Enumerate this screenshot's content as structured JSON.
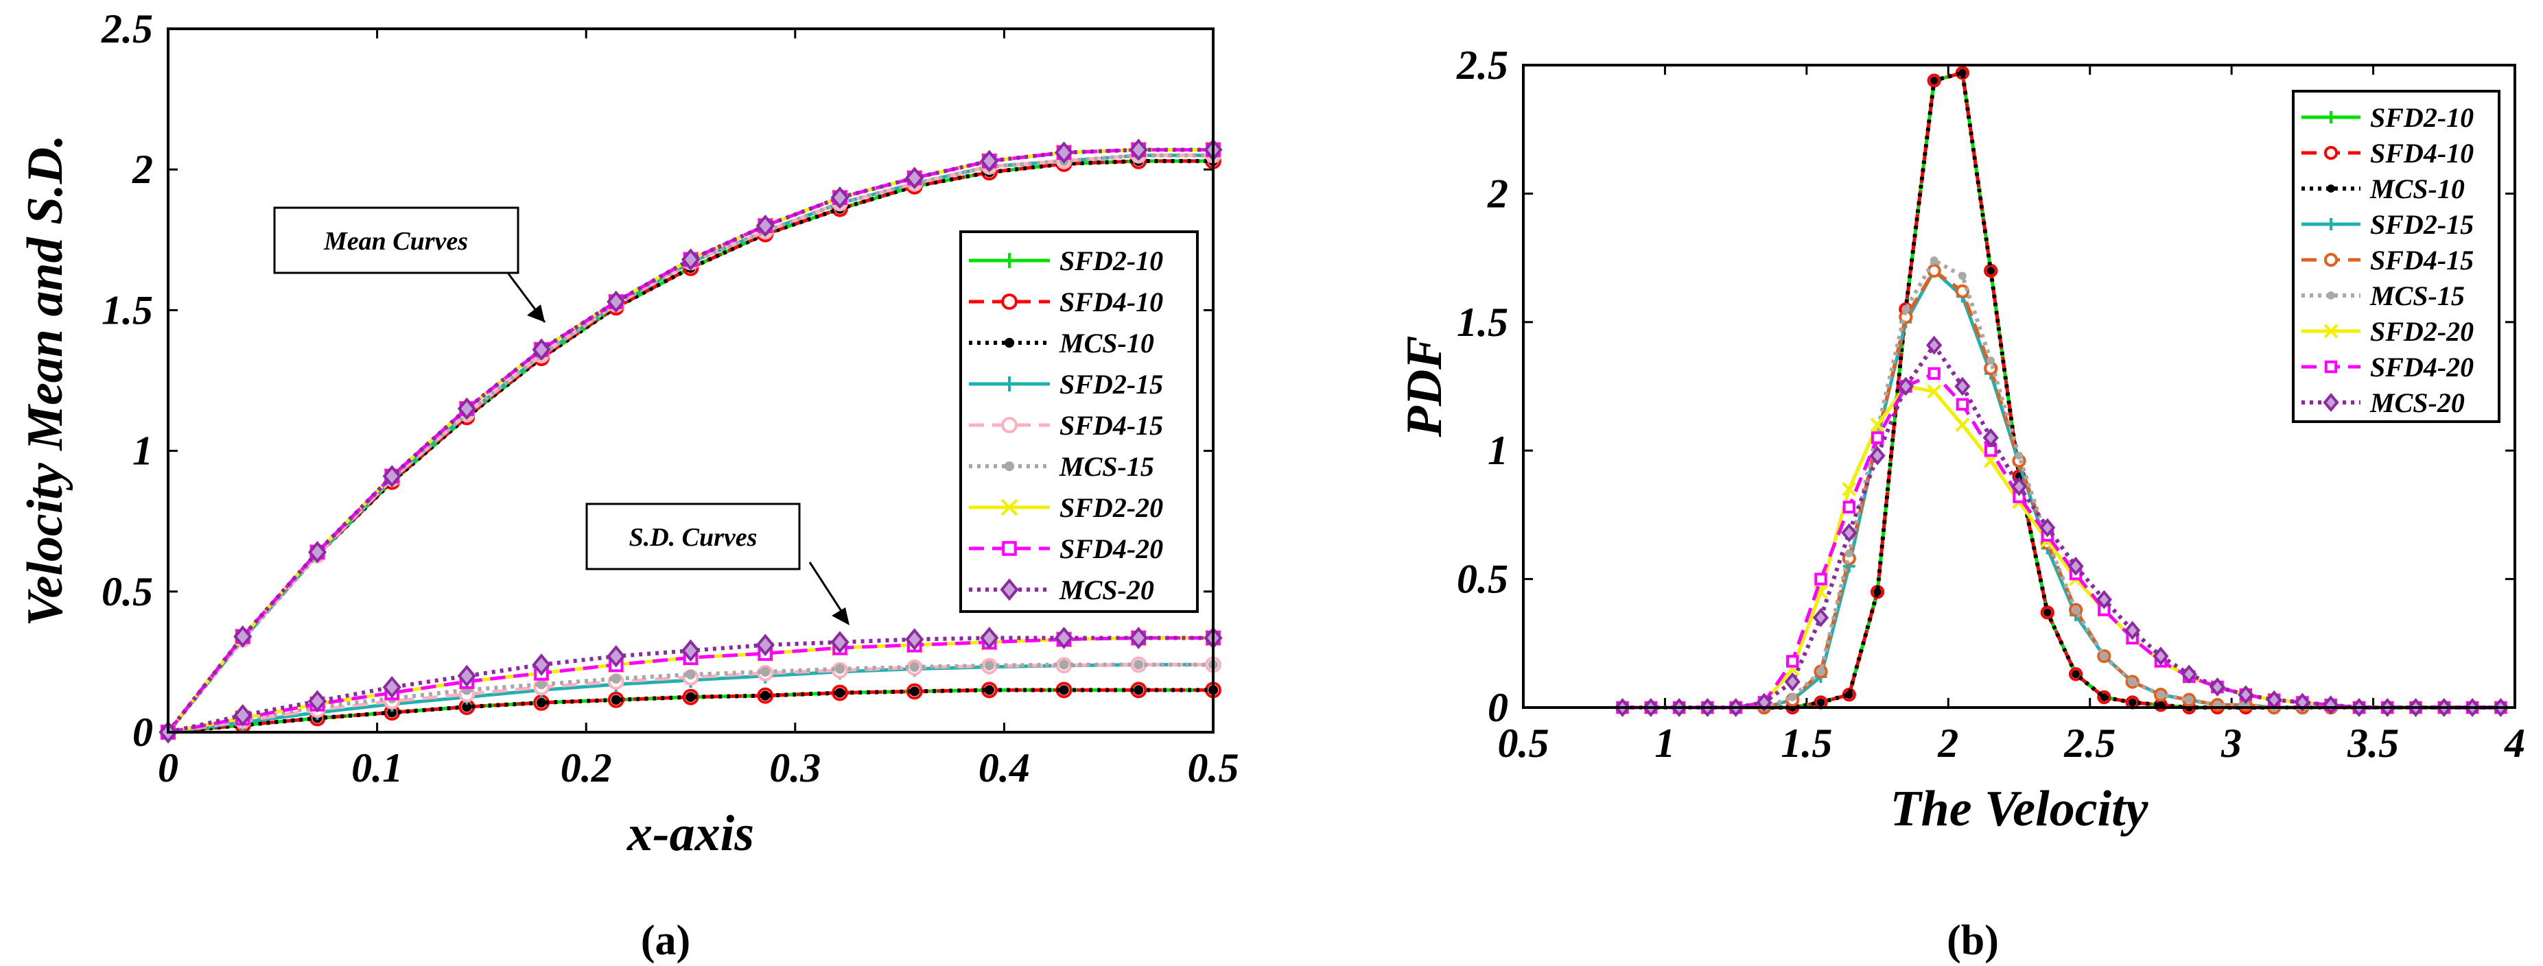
{
  "colors": {
    "SFD2-10": "#00e000",
    "SFD4-10": "#ff0000",
    "MCS-10": "#000000",
    "SFD2-15": "#20b0b0",
    "SFD4-15a": "#ffb0c0",
    "SFD4-15b": "#e06020",
    "MCS-15": "#a8a8a8",
    "SFD2-20": "#f0f000",
    "SFD4-20": "#ff00ff",
    "MCS-20": "#8a2ba0"
  },
  "chart_data": [
    {
      "type": "line",
      "caption": "(a)",
      "xlabel": "x-axis",
      "ylabel": "Velocity Mean and S.D.",
      "xlim": [
        0,
        0.5
      ],
      "ylim": [
        0,
        2.5
      ],
      "xticks": [
        "0",
        "0.1",
        "0.2",
        "0.3",
        "0.4",
        "0.5"
      ],
      "yticks": [
        "0",
        "0.5",
        "1",
        "1.5",
        "2",
        "2.5"
      ],
      "legend_position": "center-right",
      "annotations": [
        "Mean Curves",
        "S.D. Curves"
      ],
      "x": [
        0,
        0.0357,
        0.0714,
        0.1071,
        0.1429,
        0.1786,
        0.2143,
        0.25,
        0.2857,
        0.3214,
        0.3571,
        0.3929,
        0.4286,
        0.4643,
        0.5
      ],
      "series": [
        {
          "name": "SFD2-10",
          "group": "mean",
          "values": [
            0,
            0.33,
            0.63,
            0.89,
            1.12,
            1.33,
            1.51,
            1.65,
            1.77,
            1.86,
            1.94,
            1.99,
            2.02,
            2.03,
            2.03
          ]
        },
        {
          "name": "SFD4-10",
          "group": "mean",
          "values": [
            0,
            0.33,
            0.63,
            0.89,
            1.12,
            1.33,
            1.51,
            1.65,
            1.77,
            1.86,
            1.94,
            1.99,
            2.02,
            2.03,
            2.03
          ]
        },
        {
          "name": "MCS-10",
          "group": "mean",
          "values": [
            0,
            0.33,
            0.63,
            0.89,
            1.12,
            1.33,
            1.51,
            1.65,
            1.77,
            1.86,
            1.94,
            1.99,
            2.02,
            2.03,
            2.03
          ]
        },
        {
          "name": "SFD2-15",
          "group": "mean",
          "values": [
            0,
            0.33,
            0.63,
            0.9,
            1.13,
            1.34,
            1.52,
            1.67,
            1.78,
            1.88,
            1.95,
            2.01,
            2.03,
            2.05,
            2.05
          ]
        },
        {
          "name": "SFD4-15",
          "group": "mean",
          "values": [
            0,
            0.33,
            0.63,
            0.9,
            1.13,
            1.34,
            1.52,
            1.67,
            1.78,
            1.88,
            1.95,
            2.01,
            2.03,
            2.05,
            2.05
          ]
        },
        {
          "name": "MCS-15",
          "group": "mean",
          "values": [
            0,
            0.33,
            0.63,
            0.9,
            1.13,
            1.34,
            1.52,
            1.67,
            1.78,
            1.88,
            1.95,
            2.01,
            2.03,
            2.05,
            2.05
          ]
        },
        {
          "name": "SFD2-20",
          "group": "mean",
          "values": [
            0,
            0.34,
            0.64,
            0.91,
            1.15,
            1.36,
            1.53,
            1.68,
            1.8,
            1.9,
            1.97,
            2.03,
            2.06,
            2.07,
            2.07
          ]
        },
        {
          "name": "SFD4-20",
          "group": "mean",
          "values": [
            0,
            0.34,
            0.64,
            0.91,
            1.15,
            1.36,
            1.53,
            1.68,
            1.8,
            1.9,
            1.97,
            2.03,
            2.06,
            2.07,
            2.07
          ]
        },
        {
          "name": "MCS-20",
          "group": "mean",
          "values": [
            0,
            0.34,
            0.64,
            0.91,
            1.15,
            1.36,
            1.53,
            1.68,
            1.8,
            1.9,
            1.97,
            2.03,
            2.06,
            2.07,
            2.07
          ]
        },
        {
          "name": "SFD2-10",
          "group": "sd",
          "values": [
            0,
            0.025,
            0.05,
            0.07,
            0.09,
            0.105,
            0.115,
            0.125,
            0.13,
            0.14,
            0.145,
            0.15,
            0.15,
            0.15,
            0.15
          ]
        },
        {
          "name": "SFD4-10",
          "group": "sd",
          "values": [
            0,
            0.025,
            0.05,
            0.07,
            0.09,
            0.105,
            0.115,
            0.125,
            0.13,
            0.14,
            0.145,
            0.15,
            0.15,
            0.15,
            0.15
          ]
        },
        {
          "name": "MCS-10",
          "group": "sd",
          "values": [
            0,
            0.025,
            0.05,
            0.07,
            0.09,
            0.105,
            0.115,
            0.125,
            0.13,
            0.14,
            0.145,
            0.15,
            0.15,
            0.15,
            0.15
          ]
        },
        {
          "name": "SFD2-15",
          "group": "sd",
          "values": [
            0,
            0.035,
            0.07,
            0.1,
            0.125,
            0.15,
            0.17,
            0.185,
            0.2,
            0.215,
            0.225,
            0.232,
            0.237,
            0.24,
            0.24
          ]
        },
        {
          "name": "SFD4-15",
          "group": "sd",
          "values": [
            0,
            0.04,
            0.08,
            0.11,
            0.135,
            0.16,
            0.18,
            0.195,
            0.21,
            0.22,
            0.23,
            0.235,
            0.238,
            0.24,
            0.24
          ]
        },
        {
          "name": "MCS-15",
          "group": "sd",
          "values": [
            0,
            0.045,
            0.09,
            0.12,
            0.15,
            0.17,
            0.19,
            0.205,
            0.215,
            0.225,
            0.232,
            0.237,
            0.24,
            0.24,
            0.24
          ]
        },
        {
          "name": "SFD2-20",
          "group": "sd",
          "values": [
            0,
            0.05,
            0.1,
            0.14,
            0.18,
            0.21,
            0.24,
            0.265,
            0.28,
            0.3,
            0.31,
            0.32,
            0.33,
            0.335,
            0.335
          ]
        },
        {
          "name": "SFD4-20",
          "group": "sd",
          "values": [
            0,
            0.05,
            0.1,
            0.14,
            0.18,
            0.21,
            0.24,
            0.265,
            0.28,
            0.3,
            0.31,
            0.32,
            0.33,
            0.335,
            0.335
          ]
        },
        {
          "name": "MCS-20",
          "group": "sd",
          "values": [
            0,
            0.06,
            0.11,
            0.16,
            0.2,
            0.24,
            0.27,
            0.29,
            0.31,
            0.32,
            0.33,
            0.335,
            0.335,
            0.335,
            0.335
          ]
        }
      ]
    },
    {
      "type": "line",
      "caption": "(b)",
      "xlabel": "The Velocity",
      "ylabel": "PDF",
      "xlim": [
        0.5,
        4
      ],
      "ylim": [
        0,
        2.5
      ],
      "xticks": [
        "0.5",
        "1",
        "1.5",
        "2",
        "2.5",
        "3",
        "3.5",
        "4"
      ],
      "yticks": [
        "0",
        "0.5",
        "1",
        "1.5",
        "2",
        "2.5"
      ],
      "legend_position": "top-right",
      "x": [
        0.85,
        0.95,
        1.05,
        1.15,
        1.25,
        1.35,
        1.45,
        1.55,
        1.65,
        1.75,
        1.85,
        1.95,
        2.05,
        2.15,
        2.25,
        2.35,
        2.45,
        2.55,
        2.65,
        2.75,
        2.85,
        2.95,
        3.05,
        3.15,
        3.25,
        3.35,
        3.45,
        3.55,
        3.65,
        3.75,
        3.85,
        3.95
      ],
      "series": [
        {
          "name": "SFD2-10",
          "values": [
            0,
            0,
            0,
            0,
            0,
            0,
            0,
            0.02,
            0.05,
            0.45,
            1.55,
            2.44,
            2.47,
            1.7,
            0.9,
            0.37,
            0.13,
            0.04,
            0.02,
            0.01,
            0,
            0,
            0,
            0,
            0,
            0,
            0,
            0,
            0,
            0,
            0,
            0
          ]
        },
        {
          "name": "SFD4-10",
          "values": [
            0,
            0,
            0,
            0,
            0,
            0,
            0,
            0.02,
            0.05,
            0.45,
            1.55,
            2.44,
            2.47,
            1.7,
            0.9,
            0.37,
            0.13,
            0.04,
            0.02,
            0.01,
            0,
            0,
            0,
            0,
            0,
            0,
            0,
            0,
            0,
            0,
            0,
            0
          ]
        },
        {
          "name": "MCS-10",
          "values": [
            0,
            0,
            0,
            0,
            0,
            0,
            0,
            0.02,
            0.05,
            0.45,
            1.55,
            2.44,
            2.47,
            1.7,
            0.9,
            0.37,
            0.13,
            0.04,
            0.02,
            0.01,
            0,
            0,
            0,
            0,
            0,
            0,
            0,
            0,
            0,
            0,
            0,
            0
          ]
        },
        {
          "name": "SFD2-15",
          "values": [
            0,
            0,
            0,
            0,
            0,
            0,
            0.03,
            0.12,
            0.55,
            1.05,
            1.5,
            1.7,
            1.6,
            1.3,
            0.95,
            0.62,
            0.36,
            0.2,
            0.1,
            0.05,
            0.03,
            0.01,
            0.01,
            0,
            0,
            0,
            0,
            0,
            0,
            0,
            0,
            0
          ]
        },
        {
          "name": "SFD4-15",
          "values": [
            0,
            0,
            0,
            0,
            0,
            0,
            0.03,
            0.14,
            0.58,
            1.05,
            1.52,
            1.7,
            1.62,
            1.32,
            0.96,
            0.64,
            0.38,
            0.2,
            0.1,
            0.05,
            0.03,
            0.01,
            0.01,
            0,
            0,
            0,
            0,
            0,
            0,
            0,
            0,
            0
          ]
        },
        {
          "name": "MCS-15",
          "values": [
            0,
            0,
            0,
            0,
            0,
            0,
            0.04,
            0.14,
            0.6,
            1.08,
            1.55,
            1.74,
            1.68,
            1.35,
            0.98,
            0.65,
            0.38,
            0.2,
            0.1,
            0.05,
            0.03,
            0.01,
            0.01,
            0,
            0,
            0,
            0,
            0,
            0,
            0,
            0,
            0
          ]
        },
        {
          "name": "SFD2-20",
          "values": [
            0,
            0,
            0,
            0,
            0,
            0.02,
            0.15,
            0.45,
            0.85,
            1.1,
            1.25,
            1.23,
            1.1,
            0.96,
            0.8,
            0.65,
            0.5,
            0.38,
            0.27,
            0.18,
            0.12,
            0.08,
            0.05,
            0.03,
            0.02,
            0.01,
            0,
            0,
            0,
            0,
            0,
            0
          ]
        },
        {
          "name": "SFD4-20",
          "values": [
            0,
            0,
            0,
            0,
            0,
            0.02,
            0.18,
            0.5,
            0.78,
            1.05,
            1.25,
            1.3,
            1.18,
            1.0,
            0.82,
            0.67,
            0.52,
            0.38,
            0.27,
            0.18,
            0.12,
            0.08,
            0.05,
            0.03,
            0.02,
            0.01,
            0,
            0,
            0,
            0,
            0,
            0
          ]
        },
        {
          "name": "MCS-20",
          "values": [
            0,
            0,
            0,
            0,
            0,
            0.02,
            0.1,
            0.35,
            0.68,
            0.98,
            1.25,
            1.41,
            1.25,
            1.05,
            0.86,
            0.7,
            0.55,
            0.42,
            0.3,
            0.2,
            0.13,
            0.08,
            0.05,
            0.03,
            0.02,
            0.01,
            0,
            0,
            0,
            0,
            0,
            0
          ]
        }
      ]
    }
  ]
}
